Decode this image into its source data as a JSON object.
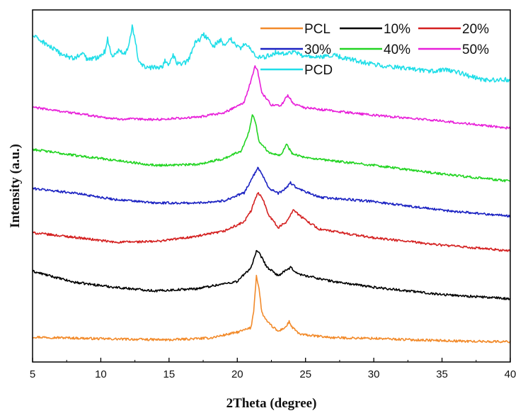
{
  "chart_data": {
    "type": "line",
    "title": "",
    "xlabel": "2Theta (degree)",
    "ylabel": "Intensity (a.u.)",
    "xlim": [
      5,
      40
    ],
    "x_ticks": [
      5,
      10,
      15,
      20,
      25,
      30,
      35,
      40
    ],
    "y_ticks": [],
    "y_units": "arbitrary, series vertically offset",
    "grid": false,
    "legend_position": "top-right",
    "series": [
      {
        "name": "PCL",
        "color": "#f28a2a",
        "points": [
          [
            5,
            0.95
          ],
          [
            10,
            0.7
          ],
          [
            15,
            0.55
          ],
          [
            18,
            0.8
          ],
          [
            20,
            1.6
          ],
          [
            21.0,
            2.2
          ],
          [
            21.2,
            4.5
          ],
          [
            21.4,
            9.4
          ],
          [
            21.6,
            7.5
          ],
          [
            21.8,
            4.3
          ],
          [
            22.2,
            3.0
          ],
          [
            23.0,
            1.7
          ],
          [
            23.6,
            2.4
          ],
          [
            23.8,
            3.1
          ],
          [
            24.0,
            2.3
          ],
          [
            24.6,
            1.3
          ],
          [
            27,
            0.85
          ],
          [
            30,
            0.75
          ],
          [
            33,
            0.55
          ],
          [
            37,
            0.35
          ],
          [
            40,
            0.3
          ]
        ]
      },
      {
        "name": "10%",
        "color": "#000000",
        "points": [
          [
            5,
            10.0
          ],
          [
            8,
            8.5
          ],
          [
            11,
            7.8
          ],
          [
            14,
            7.3
          ],
          [
            17,
            7.6
          ],
          [
            20,
            8.6
          ],
          [
            21.0,
            10.5
          ],
          [
            21.4,
            12.7
          ],
          [
            21.6,
            12.5
          ],
          [
            22.2,
            10.5
          ],
          [
            23,
            9.4
          ],
          [
            23.9,
            10.5
          ],
          [
            24.5,
            9.6
          ],
          [
            27,
            8.6
          ],
          [
            30,
            7.8
          ],
          [
            35,
            6.8
          ],
          [
            40,
            6.2
          ]
        ]
      },
      {
        "name": "20%",
        "color": "#d42020",
        "points": [
          [
            5,
            15.3
          ],
          [
            8,
            14.7
          ],
          [
            11,
            14.0
          ],
          [
            14,
            14.1
          ],
          [
            17,
            14.8
          ],
          [
            19,
            15.5
          ],
          [
            20.5,
            16.8
          ],
          [
            21.0,
            18.3
          ],
          [
            21.5,
            20.8
          ],
          [
            21.8,
            20.3
          ],
          [
            22.3,
            17.8
          ],
          [
            23,
            16.0
          ],
          [
            23.6,
            16.8
          ],
          [
            24.1,
            18.5
          ],
          [
            24.6,
            17.6
          ],
          [
            26,
            15.8
          ],
          [
            30,
            14.6
          ],
          [
            35,
            13.6
          ],
          [
            40,
            12.8
          ]
        ]
      },
      {
        "name": "30%",
        "color": "#1b22c2",
        "points": [
          [
            5,
            21.4
          ],
          [
            8,
            20.8
          ],
          [
            11,
            19.9
          ],
          [
            14,
            19.4
          ],
          [
            17,
            19.4
          ],
          [
            19,
            19.7
          ],
          [
            20.5,
            20.8
          ],
          [
            21.2,
            23.2
          ],
          [
            21.5,
            24.2
          ],
          [
            21.8,
            23.5
          ],
          [
            22.3,
            21.5
          ],
          [
            23,
            20.7
          ],
          [
            23.6,
            21.5
          ],
          [
            23.9,
            22.2
          ],
          [
            24.4,
            21.4
          ],
          [
            26,
            20.2
          ],
          [
            30,
            19.6
          ],
          [
            35,
            18.4
          ],
          [
            40,
            17.6
          ]
        ]
      },
      {
        "name": "40%",
        "color": "#22d422",
        "points": [
          [
            5,
            26.8
          ],
          [
            8,
            26.0
          ],
          [
            11,
            25.3
          ],
          [
            14,
            24.6
          ],
          [
            17,
            24.7
          ],
          [
            19,
            25.5
          ],
          [
            20.3,
            26.6
          ],
          [
            20.9,
            29.5
          ],
          [
            21.1,
            31.7
          ],
          [
            21.3,
            30.8
          ],
          [
            21.6,
            27.9
          ],
          [
            22.3,
            26.4
          ],
          [
            23.2,
            26.0
          ],
          [
            23.6,
            27.5
          ],
          [
            24.0,
            26.3
          ],
          [
            25,
            25.6
          ],
          [
            30,
            24.6
          ],
          [
            35,
            23.4
          ],
          [
            40,
            22.4
          ]
        ]
      },
      {
        "name": "50%",
        "color": "#e81fd9",
        "points": [
          [
            5,
            32.6
          ],
          [
            8,
            31.8
          ],
          [
            11,
            31.0
          ],
          [
            14,
            30.9
          ],
          [
            17,
            31.2
          ],
          [
            19,
            31.8
          ],
          [
            20.5,
            33.3
          ],
          [
            21.0,
            36.2
          ],
          [
            21.3,
            38.4
          ],
          [
            21.5,
            37.5
          ],
          [
            21.8,
            34.6
          ],
          [
            22.5,
            32.9
          ],
          [
            23.2,
            32.8
          ],
          [
            23.7,
            34.3
          ],
          [
            24.1,
            33.1
          ],
          [
            25,
            32.5
          ],
          [
            30,
            31.5
          ],
          [
            35,
            30.7
          ],
          [
            40,
            29.7
          ]
        ]
      },
      {
        "name": "PCD",
        "color": "#21dee8",
        "points": [
          [
            5,
            42.5
          ],
          [
            6,
            41.3
          ],
          [
            7,
            40.0
          ],
          [
            8,
            39.3
          ],
          [
            8.7,
            40.0
          ],
          [
            9.0,
            39.2
          ],
          [
            9.7,
            39.4
          ],
          [
            10.3,
            40.3
          ],
          [
            10.5,
            42.0
          ],
          [
            10.8,
            39.6
          ],
          [
            11.4,
            40.6
          ],
          [
            11.7,
            39.9
          ],
          [
            12.0,
            40.7
          ],
          [
            12.3,
            43.8
          ],
          [
            12.5,
            42.0
          ],
          [
            12.8,
            38.6
          ],
          [
            13.5,
            38.0
          ],
          [
            14.5,
            38.2
          ],
          [
            14.7,
            39.0
          ],
          [
            15.0,
            38.5
          ],
          [
            15.3,
            39.7
          ],
          [
            15.6,
            38.6
          ],
          [
            16.0,
            38.6
          ],
          [
            16.4,
            39.0
          ],
          [
            16.9,
            41.5
          ],
          [
            17.2,
            41.8
          ],
          [
            17.5,
            42.6
          ],
          [
            17.9,
            42.0
          ],
          [
            18.2,
            40.8
          ],
          [
            18.5,
            41.5
          ],
          [
            18.8,
            41.9
          ],
          [
            19.1,
            40.8
          ],
          [
            19.5,
            42.1
          ],
          [
            19.9,
            41.0
          ],
          [
            20.2,
            40.7
          ],
          [
            20.6,
            41.3
          ],
          [
            20.9,
            40.9
          ],
          [
            21.4,
            39.4
          ],
          [
            22,
            39.5
          ],
          [
            22.9,
            40.2
          ],
          [
            23.4,
            40.0
          ],
          [
            24,
            40.2
          ],
          [
            25,
            39.6
          ],
          [
            26,
            39.4
          ],
          [
            27,
            39.8
          ],
          [
            28,
            39.3
          ],
          [
            30,
            38.5
          ],
          [
            32,
            38.0
          ],
          [
            34,
            37.5
          ],
          [
            35,
            37.8
          ],
          [
            36,
            37.5
          ],
          [
            38,
            36.3
          ],
          [
            40,
            36.4
          ]
        ]
      }
    ]
  }
}
